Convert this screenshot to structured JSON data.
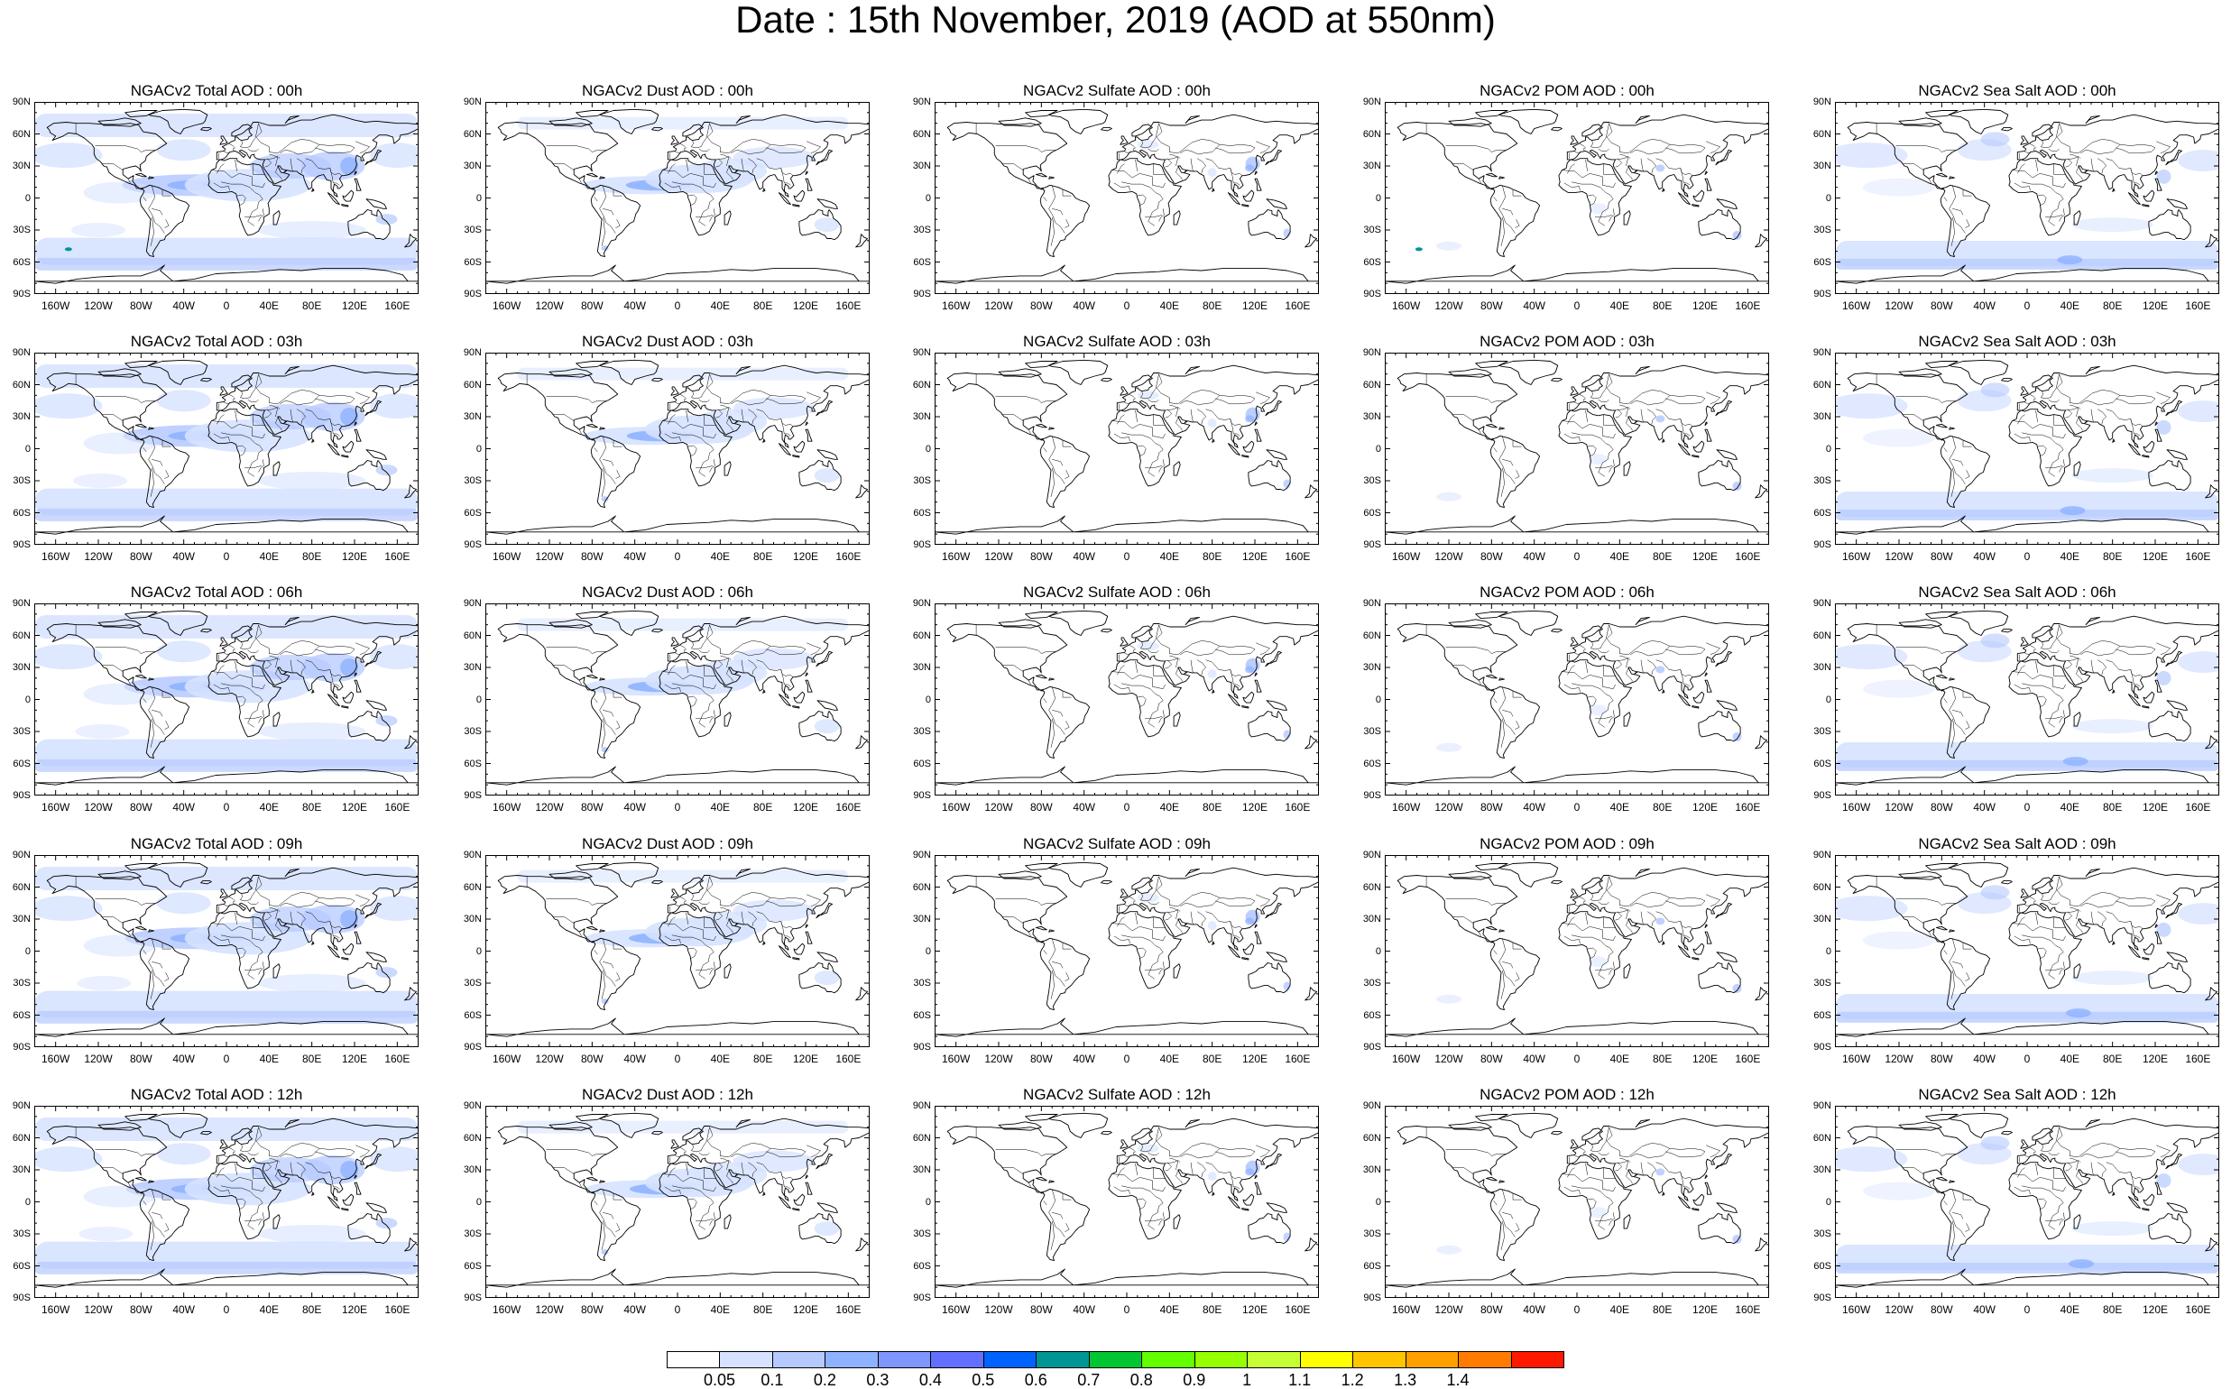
{
  "title": "Date : 15th November, 2019 (AOD at 550nm)",
  "lat_labels": [
    "90N",
    "60N",
    "30N",
    "0",
    "30S",
    "60S",
    "90S"
  ],
  "lon_labels": [
    "160W",
    "120W",
    "80W",
    "40W",
    "0",
    "40E",
    "80E",
    "120E",
    "160E"
  ],
  "colors": {
    "levels": [
      "#ffffff",
      "#d6e2ff",
      "#b5c9ff",
      "#8eb2ff",
      "#7f96ff",
      "#6370ff",
      "#0063ff",
      "#009696",
      "#00c633",
      "#63ff00",
      "#96ff00",
      "#c6ff33",
      "#ffff00",
      "#ffc600",
      "#ffa000",
      "#ff7c00",
      "#ff1900"
    ],
    "coastline": "#000000"
  },
  "colorbar": {
    "labels": [
      "0.05",
      "0.1",
      "0.2",
      "0.3",
      "0.4",
      "0.5",
      "0.6",
      "0.7",
      "0.8",
      "0.9",
      "1",
      "1.1",
      "1.2",
      "1.3",
      "1.4"
    ]
  },
  "rows": [
    {
      "panels": [
        {
          "title": "NGACv2 Total AOD : 00h",
          "type": "total"
        },
        {
          "title": "NGACv2 Dust AOD : 00h",
          "type": "dust"
        },
        {
          "title": "NGACv2 Sulfate AOD : 00h",
          "type": "sulfate"
        },
        {
          "title": "NGACv2 POM AOD : 00h",
          "type": "pom"
        },
        {
          "title": "NGACv2 Sea Salt AOD : 00h",
          "type": "seasalt"
        }
      ]
    },
    {
      "panels": [
        {
          "title": "NGACv2 Total AOD : 03h",
          "type": "total"
        },
        {
          "title": "NGACv2 Dust AOD : 03h",
          "type": "dust"
        },
        {
          "title": "NGACv2 Sulfate AOD : 03h",
          "type": "sulfate"
        },
        {
          "title": "NGACv2 POM AOD : 03h",
          "type": "pom"
        },
        {
          "title": "NGACv2 Sea Salt AOD : 03h",
          "type": "seasalt"
        }
      ]
    },
    {
      "panels": [
        {
          "title": "NGACv2 Total AOD : 06h",
          "type": "total"
        },
        {
          "title": "NGACv2 Dust AOD : 06h",
          "type": "dust"
        },
        {
          "title": "NGACv2 Sulfate AOD : 06h",
          "type": "sulfate"
        },
        {
          "title": "NGACv2 POM AOD : 06h",
          "type": "pom"
        },
        {
          "title": "NGACv2 Sea Salt AOD : 06h",
          "type": "seasalt"
        }
      ]
    },
    {
      "panels": [
        {
          "title": "NGACv2 Total AOD : 09h",
          "type": "total"
        },
        {
          "title": "NGACv2 Dust AOD : 09h",
          "type": "dust"
        },
        {
          "title": "NGACv2 Sulfate AOD : 09h",
          "type": "sulfate"
        },
        {
          "title": "NGACv2 POM AOD : 09h",
          "type": "pom"
        },
        {
          "title": "NGACv2 Sea Salt  AOD : 09h",
          "type": "seasalt"
        }
      ]
    },
    {
      "panels": [
        {
          "title": "NGACv2 Total AOD : 12h",
          "type": "total"
        },
        {
          "title": "NGACv2 Dust AOD : 12h",
          "type": "dust"
        },
        {
          "title": "NGACv2 Sulfate AOD : 12h",
          "type": "sulfate"
        },
        {
          "title": "NGACv2 POM  AOD : 12h",
          "type": "pom"
        },
        {
          "title": "NGACv2 Sea Salt  AOD : 12h",
          "type": "seasalt"
        }
      ]
    }
  ]
}
